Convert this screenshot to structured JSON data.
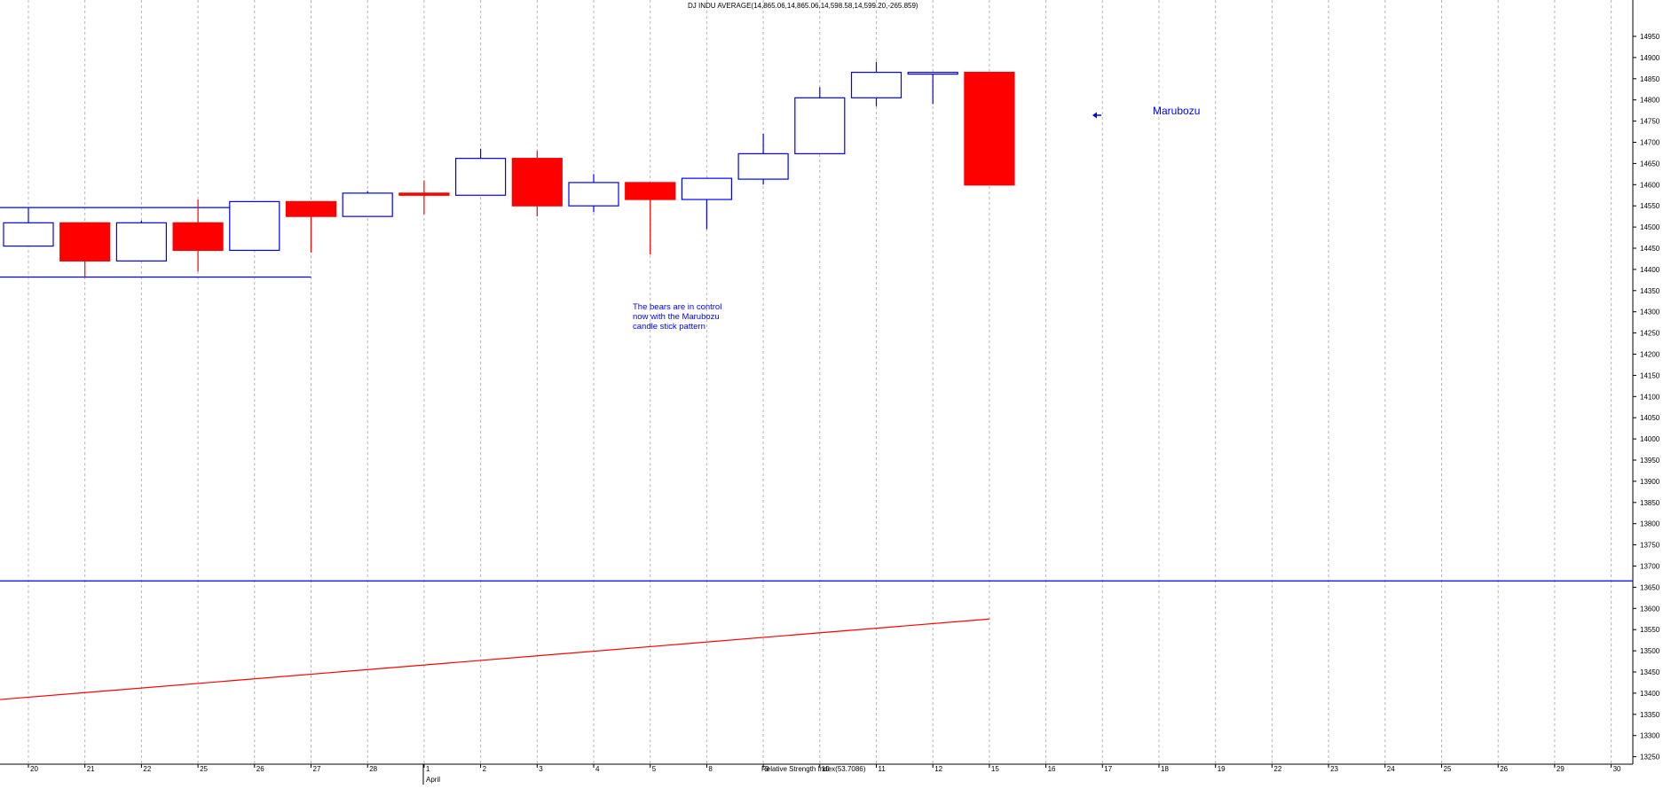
{
  "chart_data": {
    "type": "candlestick",
    "title": "DJ INDU AVERAGE(14,865.06,14,865.06,14,598.58,14,599.20,-265.859)",
    "indicator_label": "Relative Strength Index(53.7086)",
    "x_tick_labels": [
      "20",
      "21",
      "22",
      "25",
      "26",
      "27",
      "28",
      "1",
      "2",
      "3",
      "4",
      "5",
      "8",
      "9",
      "10",
      "11",
      "12",
      "15",
      "16",
      "17",
      "18",
      "19",
      "22",
      "23",
      "24",
      "25",
      "26",
      "29",
      "30"
    ],
    "month_label": "April",
    "y_axis": {
      "min": 13225,
      "max": 15000,
      "step": 50,
      "side": "right"
    },
    "y_tick_labels": [
      "14950",
      "14900",
      "14850",
      "14800",
      "14750",
      "14700",
      "14650",
      "14600",
      "14550",
      "14500",
      "14450",
      "14400",
      "14350",
      "14300",
      "14250",
      "14200",
      "14150",
      "14100",
      "14050",
      "14000",
      "13950",
      "13900",
      "13850",
      "13800",
      "13750",
      "13700",
      "13650",
      "13600",
      "13550",
      "13500",
      "13450",
      "13400",
      "13350",
      "13300",
      "13250"
    ],
    "candles": [
      {
        "date": "20",
        "open": 14455,
        "high": 14545,
        "low": 14455,
        "close": 14510
      },
      {
        "date": "21",
        "open": 14510,
        "high": 14510,
        "low": 14380,
        "close": 14420
      },
      {
        "date": "22",
        "open": 14420,
        "high": 14515,
        "low": 14420,
        "close": 14510
      },
      {
        "date": "25",
        "open": 14510,
        "high": 14565,
        "low": 14395,
        "close": 14445
      },
      {
        "date": "26",
        "open": 14445,
        "high": 14560,
        "low": 14445,
        "close": 14560
      },
      {
        "date": "27",
        "open": 14560,
        "high": 14560,
        "low": 14440,
        "close": 14525
      },
      {
        "date": "28",
        "open": 14525,
        "high": 14585,
        "low": 14525,
        "close": 14580
      },
      {
        "date": "1",
        "open": 14580,
        "high": 14610,
        "low": 14530,
        "close": 14575
      },
      {
        "date": "2",
        "open": 14575,
        "high": 14685,
        "low": 14575,
        "close": 14662
      },
      {
        "date": "3",
        "open": 14662,
        "high": 14680,
        "low": 14525,
        "close": 14550
      },
      {
        "date": "4",
        "open": 14550,
        "high": 14625,
        "low": 14535,
        "close": 14605
      },
      {
        "date": "5",
        "open": 14605,
        "high": 14605,
        "low": 14435,
        "close": 14565
      },
      {
        "date": "8",
        "open": 14565,
        "high": 14615,
        "low": 14495,
        "close": 14615
      },
      {
        "date": "9",
        "open": 14613,
        "high": 14720,
        "low": 14600,
        "close": 14673
      },
      {
        "date": "10",
        "open": 14673,
        "high": 14830,
        "low": 14673,
        "close": 14805
      },
      {
        "date": "11",
        "open": 14805,
        "high": 14890,
        "low": 14785,
        "close": 14865
      },
      {
        "date": "12",
        "open": 14865,
        "high": 14865,
        "low": 14790,
        "close": 14865
      },
      {
        "date": "15",
        "open": 14865.06,
        "high": 14865.06,
        "low": 14598.58,
        "close": 14599.2
      }
    ],
    "lines": [
      {
        "color": "#0000ff",
        "from": {
          "index": 0,
          "value": 14546
        },
        "to": {
          "index": 4,
          "value": 14546
        }
      },
      {
        "color": "#0000ff",
        "from": {
          "index": 0,
          "value": 14382
        },
        "to": {
          "index": 5,
          "value": 14382
        }
      },
      {
        "color": "#0000ff",
        "from": {
          "index": 0,
          "value": 13665
        },
        "to": {
          "index": 28,
          "value": 13665
        }
      }
    ],
    "rsi_line": {
      "color": "#ff0000",
      "from": {
        "index": 0,
        "value": 13385
      },
      "to": {
        "index": 17,
        "value": 13575
      }
    },
    "annotations": [
      {
        "lines": [
          "The bears are in control",
          "now with the Marubozu",
          "candle stick pattern"
        ],
        "color": "#0000ff"
      },
      {
        "text": "Marubozu",
        "color": "#0000ff"
      }
    ],
    "grid": "vertical dotted",
    "colors": {
      "up": "#0000ff",
      "down": "#ff0000",
      "axis": "#000000",
      "grid": "#b4b4b4"
    }
  }
}
